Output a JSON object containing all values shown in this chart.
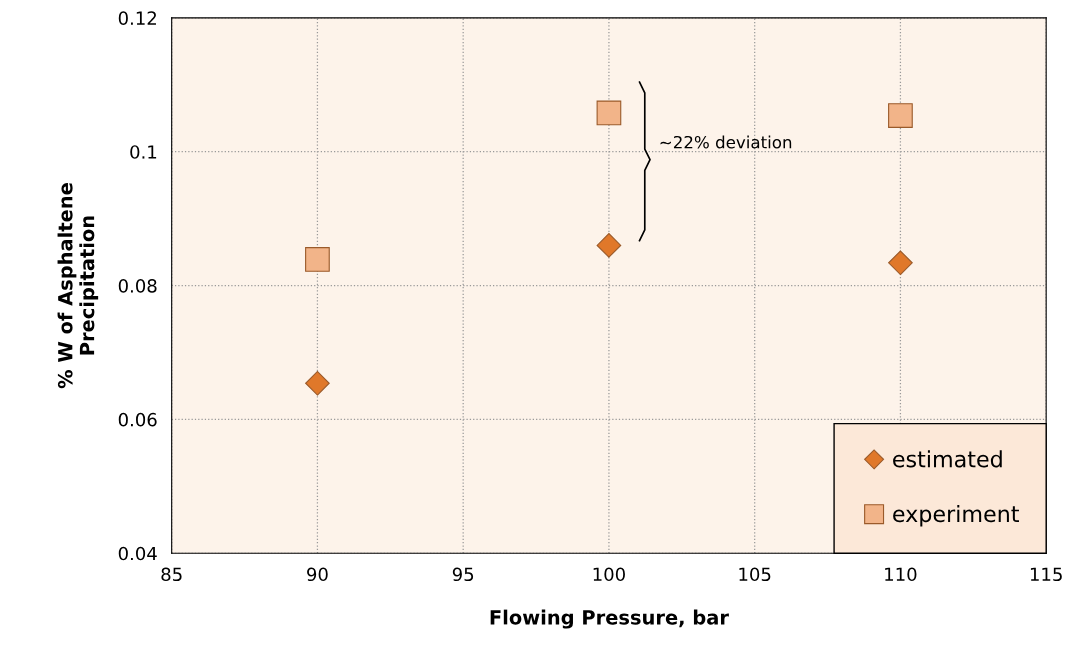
{
  "chart_data": {
    "type": "scatter",
    "xlabel": "Flowing Pressure, bar",
    "ylabel": "% W of Asphaltene\nPrecipitation",
    "x": [
      90,
      100,
      110
    ],
    "series": [
      {
        "name": "estimated",
        "color": "#e0782a",
        "marker": "diamond",
        "values": [
          0.0654,
          0.086,
          0.0834
        ]
      },
      {
        "name": "experiment",
        "color": "#f2b489",
        "marker": "square",
        "values": [
          0.0839,
          0.1058,
          0.1054
        ]
      }
    ],
    "xlim": [
      85,
      115
    ],
    "xticks": [
      85,
      90,
      95,
      100,
      105,
      110,
      115
    ],
    "ylim": [
      0.04,
      0.12
    ],
    "yticks": [
      0.04,
      0.06,
      0.08,
      0.1,
      0.12
    ],
    "grid": true,
    "legend": "bottom right",
    "annotations": [
      "~22% deviation"
    ]
  }
}
